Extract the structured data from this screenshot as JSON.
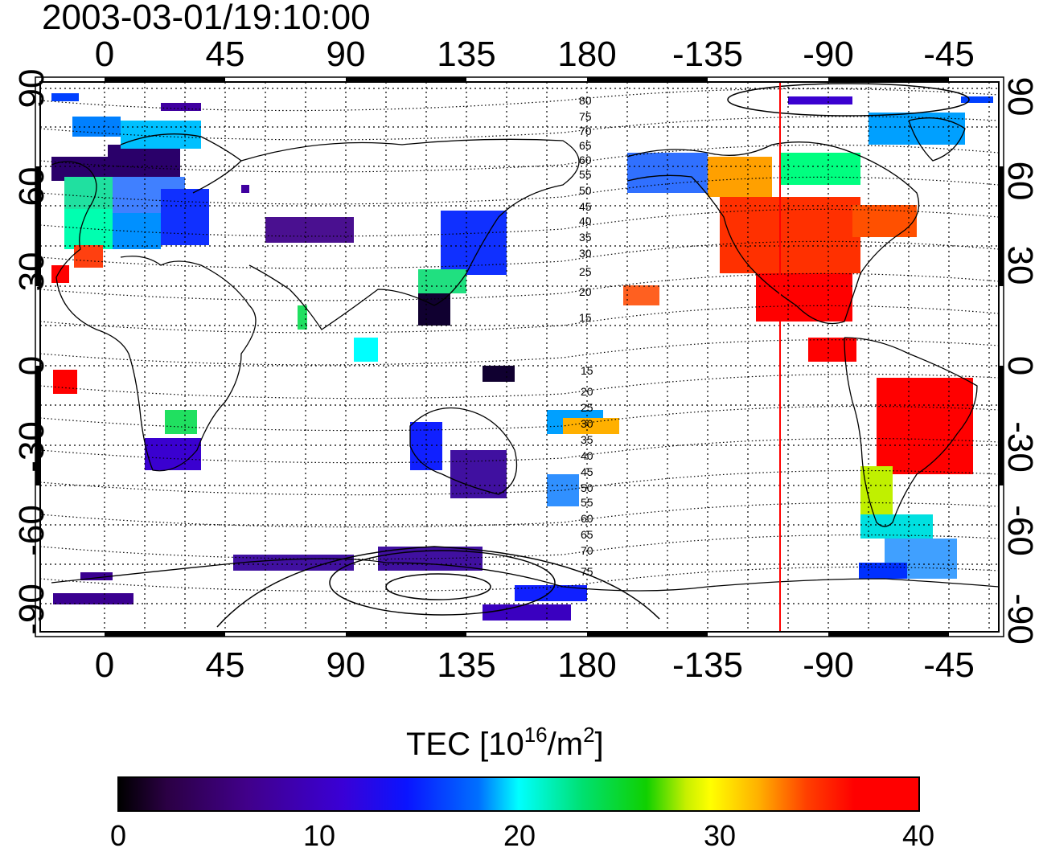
{
  "title": "2003-03-01/19:10:00",
  "axes": {
    "top_ticks": [
      "0",
      "45",
      "90",
      "135",
      "180",
      "-135",
      "-90",
      "-45"
    ],
    "bottom_ticks": [
      "0",
      "45",
      "90",
      "135",
      "180",
      "-135",
      "-90",
      "-45"
    ],
    "left_ticks": [
      "90",
      "60",
      "30",
      "0",
      "-30",
      "-60",
      "-90"
    ],
    "right_ticks": [
      "90",
      "60",
      "30",
      "0",
      "-30",
      "-60",
      "-90"
    ]
  },
  "contour_labels_north": [
    "80",
    "75",
    "70",
    "65",
    "60",
    "55",
    "50",
    "45",
    "40",
    "35",
    "30",
    "25",
    "20",
    "15"
  ],
  "contour_labels_south": [
    "15",
    "20",
    "25",
    "30",
    "35",
    "40",
    "45",
    "50",
    "55",
    "60",
    "65",
    "70",
    "75"
  ],
  "colorbar": {
    "title_text": "TEC  [10",
    "title_sup1": "16",
    "title_mid": "/m",
    "title_sup2": "2",
    "title_end": "]",
    "ticks": [
      "0",
      "10",
      "20",
      "30",
      "40"
    ],
    "range": [
      0,
      40
    ]
  },
  "colors": {
    "marker_line": "#ff0000",
    "frame": "#000000"
  }
}
